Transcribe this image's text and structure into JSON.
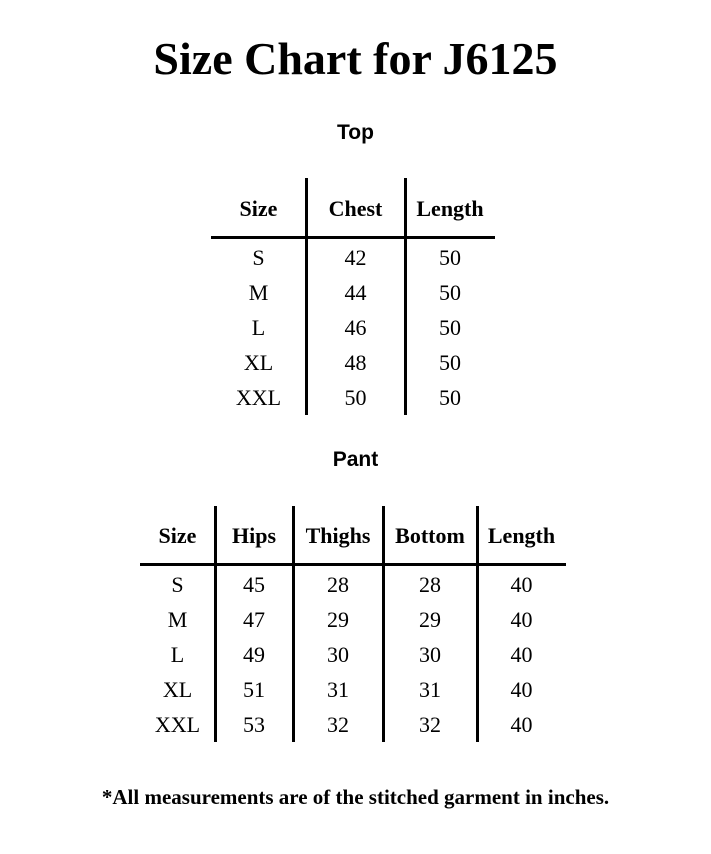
{
  "title": "Size Chart for J6125",
  "top": {
    "heading": "Top",
    "columns": [
      "Size",
      "Chest",
      "Length"
    ],
    "rows": [
      [
        "S",
        "42",
        "50"
      ],
      [
        "M",
        "44",
        "50"
      ],
      [
        "L",
        "46",
        "50"
      ],
      [
        "XL",
        "48",
        "50"
      ],
      [
        "XXL",
        "50",
        "50"
      ]
    ]
  },
  "pant": {
    "heading": "Pant",
    "columns": [
      "Size",
      "Hips",
      "Thighs",
      "Bottom",
      "Length"
    ],
    "rows": [
      [
        "S",
        "45",
        "28",
        "28",
        "40"
      ],
      [
        "M",
        "47",
        "29",
        "29",
        "40"
      ],
      [
        "L",
        "49",
        "30",
        "30",
        "40"
      ],
      [
        "XL",
        "51",
        "31",
        "31",
        "40"
      ],
      [
        "XXL",
        "53",
        "32",
        "32",
        "40"
      ]
    ]
  },
  "footnote": "*All measurements are of the stitched garment in inches."
}
